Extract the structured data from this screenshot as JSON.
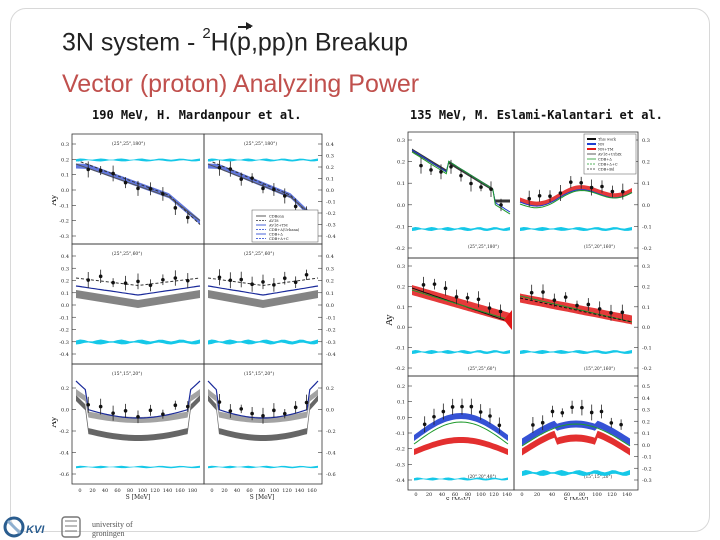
{
  "slide": {
    "title_prefix": "3N system -",
    "title_superscript": "2",
    "title_h": "H(",
    "title_vec_p": "p",
    "title_suffix": ",pp)n Breakup",
    "subtitle": "Vector (proton) Analyzing Power"
  },
  "left_figure": {
    "caption": "190 MeV, H. Mardanpour et al.",
    "ylabel": "Ay",
    "ylabel_mid": "Ay",
    "xlabel": "S [MeV]",
    "x_ticks": [
      "0",
      "20",
      "40",
      "60",
      "80",
      "100",
      "120",
      "140",
      "160",
      "180"
    ],
    "legend": [
      "CDBonn",
      "AV18",
      "AV18+TM",
      "CDB+Δ(Urbana)",
      "CDB+Δ",
      "CDB+Δ+C"
    ],
    "configs": [
      "(25°,25°,180°)",
      "(25°,25°,180°)",
      "(25°,25°,60°)",
      "(25°,25°,60°)",
      "(15°,15°,20°)",
      "(15°,15°,20°)"
    ],
    "left_ticks_top": [
      "0.3",
      "0.2",
      "0.1",
      "0.0",
      "-0.1",
      "-0.2",
      "-0.3"
    ],
    "left_ticks_mid": [
      "0.4",
      "0.3",
      "0.2",
      "0.1",
      "0.0",
      "-0.1",
      "-0.2",
      "-0.3",
      "-0.4"
    ],
    "left_ticks_bot": [
      "0.2",
      "0.0",
      "-0.2",
      "-0.4",
      "-0.6"
    ],
    "right_ticks_top": [
      "0.4",
      "0.3",
      "0.2",
      "0.1",
      "0.0",
      "-0.1",
      "-0.2",
      "-0.3",
      "-0.4"
    ],
    "right_ticks_mid": [
      "0.4",
      "0.3",
      "0.2",
      "0.1",
      "0.0",
      "-0.1",
      "-0.2",
      "-0.3",
      "-0.4"
    ],
    "right_ticks_bot": [
      "0.2",
      "0.0",
      "-0.2",
      "-0.4",
      "-0.6"
    ]
  },
  "right_figure": {
    "caption": "135 MeV, M. Eslami-Kalantari et al.",
    "ylabel": "Ay",
    "xlabel": "S [MeV]",
    "x_ticks": [
      "0",
      "20",
      "40",
      "60",
      "80",
      "100",
      "120",
      "140"
    ],
    "legend": [
      "This work",
      "NN",
      "NN+TM",
      "AV18+UrbIX",
      "CDB+Δ",
      "CDB+Δ+C",
      "CDB+Bd"
    ],
    "configs": [
      "(25°,25°,180°)",
      "(15°,20°,160°)",
      "(25°,25°,60°)",
      "(15°,20°,160°)",
      "(20°,20°,40°)",
      "(15°,15°,20°)"
    ],
    "left_ticks_top": [
      "0.3",
      "0.2",
      "0.1",
      "0.0",
      "-0.1",
      "-0.2"
    ],
    "left_ticks_mid": [
      "0.3",
      "0.2",
      "0.1",
      "0.0",
      "-0.1",
      "-0.2"
    ],
    "left_ticks_bot": [
      "0.2",
      "0.1",
      "0.0",
      "-0.1",
      "-0.2",
      "-0.3",
      "-0.4"
    ],
    "right_ticks_top": [
      "0.3",
      "0.2",
      "0.1",
      "0.0",
      "-0.1",
      "-0.2"
    ],
    "right_ticks_mid": [
      "0.3",
      "0.2",
      "0.1",
      "0.0",
      "-0.1",
      "-0.2"
    ],
    "right_ticks_bot": [
      "0.5",
      "0.4",
      "0.3",
      "0.2",
      "0.1",
      "0.0",
      "-0.1",
      "-0.2",
      "-0.3"
    ]
  },
  "footer": {
    "kvi_text": "KVI",
    "university_line1": "university of",
    "university_line2": "groningen"
  },
  "colors": {
    "title": "#222222",
    "subtitle": "#c0504d",
    "band_blue": "#1f3fd0",
    "band_red": "#e01818",
    "band_gray": "#888888",
    "cyan": "#15c8e8",
    "green": "#1f9a2b"
  }
}
